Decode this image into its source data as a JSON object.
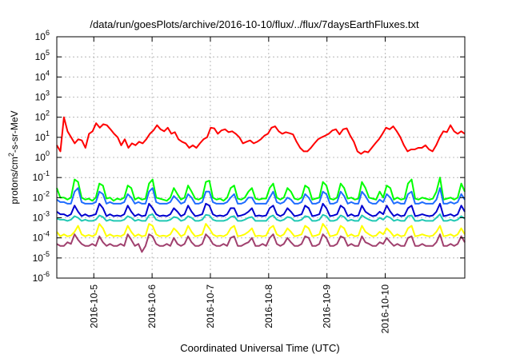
{
  "chart_data": {
    "type": "line",
    "title": "/data/run/goesPlots/archive/2016-10-10/flux/../flux/7daysEarthFluxes.txt",
    "xlabel": "Coordinated Universal Time (UTC)",
    "ylabel_parts": [
      "protons/cm",
      "2",
      "-s-sr-MeV"
    ],
    "y_scale": "log",
    "ylim": [
      1e-06,
      1000000.0
    ],
    "y_ticks": [
      {
        "base": "10",
        "exp": "-6",
        "value": 1e-06
      },
      {
        "base": "10",
        "exp": "-5",
        "value": 1e-05
      },
      {
        "base": "10",
        "exp": "-4",
        "value": 0.0001
      },
      {
        "base": "10",
        "exp": "-3",
        "value": 0.001
      },
      {
        "base": "10",
        "exp": "-2",
        "value": 0.01
      },
      {
        "base": "10",
        "exp": "-1",
        "value": 0.1
      },
      {
        "base": "10",
        "exp": "0",
        "value": 1
      },
      {
        "base": "10",
        "exp": "1",
        "value": 10
      },
      {
        "base": "10",
        "exp": "2",
        "value": 100
      },
      {
        "base": "10",
        "exp": "3",
        "value": 1000
      },
      {
        "base": "10",
        "exp": "4",
        "value": 10000
      },
      {
        "base": "10",
        "exp": "5",
        "value": 100000
      },
      {
        "base": "10",
        "exp": "6",
        "value": 1000000
      }
    ],
    "x_ticks": [
      "2016-10-5",
      "2016-10-6",
      "2016-10-7",
      "2016-10-8",
      "2016-10-9",
      "2016-10-10"
    ],
    "x_range_days": [
      0,
      7
    ],
    "grid": true,
    "series": [
      {
        "color": "#ff0000",
        "values": [
          4,
          2,
          100,
          20,
          10,
          5,
          8,
          7,
          3,
          15,
          20,
          50,
          30,
          45,
          40,
          25,
          15,
          10,
          4,
          8,
          3,
          5,
          4,
          6,
          5,
          8,
          15,
          22,
          40,
          25,
          20,
          30,
          15,
          18,
          8,
          6,
          5,
          3,
          4,
          3,
          5,
          8,
          10,
          30,
          28,
          15,
          22,
          25,
          18,
          20,
          15,
          10,
          5,
          6,
          7,
          5,
          6,
          8,
          12,
          15,
          30,
          35,
          20,
          15,
          18,
          16,
          14,
          6,
          3,
          2,
          2,
          3,
          5,
          8,
          10,
          12,
          15,
          22,
          25,
          14,
          25,
          28,
          12,
          6,
          2,
          1.5,
          2,
          1.8,
          3,
          5,
          8,
          15,
          30,
          25,
          35,
          20,
          10,
          4,
          2,
          2.5,
          2.5,
          3,
          3,
          4,
          2.5,
          2,
          4,
          10,
          20,
          18,
          40,
          20,
          15,
          20,
          15
        ]
      },
      {
        "color": "#00ff00",
        "values": [
          0.03,
          0.01,
          0.01,
          0.008,
          0.01,
          0.08,
          0.06,
          0.01,
          0.008,
          0.009,
          0.007,
          0.01,
          0.05,
          0.04,
          0.009,
          0.01,
          0.007,
          0.009,
          0.008,
          0.01,
          0.04,
          0.03,
          0.008,
          0.01,
          0.008,
          0.009,
          0.05,
          0.08,
          0.01,
          0.009,
          0.008,
          0.007,
          0.01,
          0.03,
          0.015,
          0.008,
          0.01,
          0.04,
          0.02,
          0.009,
          0.008,
          0.01,
          0.06,
          0.07,
          0.01,
          0.008,
          0.009,
          0.007,
          0.01,
          0.03,
          0.04,
          0.009,
          0.008,
          0.01,
          0.02,
          0.03,
          0.009,
          0.008,
          0.009,
          0.009,
          0.03,
          0.05,
          0.01,
          0.008,
          0.01,
          0.03,
          0.02,
          0.009,
          0.008,
          0.01,
          0.04,
          0.03,
          0.008,
          0.009,
          0.01,
          0.06,
          0.04,
          0.009,
          0.008,
          0.01,
          0.05,
          0.03,
          0.009,
          0.01,
          0.008,
          0.009,
          0.06,
          0.03,
          0.01,
          0.009,
          0.008,
          0.02,
          0.01,
          0.04,
          0.03,
          0.008,
          0.01,
          0.008,
          0.009,
          0.05,
          0.08,
          0.009,
          0.008,
          0.01,
          0.009,
          0.008,
          0.009,
          0.02,
          0.1,
          0.008,
          0.009,
          0.01,
          0.008,
          0.01,
          0.05,
          0.02
        ]
      },
      {
        "color": "#1e6cff",
        "values": [
          0.008,
          0.006,
          0.006,
          0.005,
          0.005,
          0.02,
          0.03,
          0.006,
          0.005,
          0.005,
          0.005,
          0.006,
          0.02,
          0.015,
          0.005,
          0.006,
          0.005,
          0.005,
          0.005,
          0.006,
          0.015,
          0.01,
          0.005,
          0.006,
          0.005,
          0.005,
          0.02,
          0.03,
          0.006,
          0.005,
          0.005,
          0.005,
          0.006,
          0.012,
          0.008,
          0.005,
          0.006,
          0.015,
          0.01,
          0.005,
          0.005,
          0.006,
          0.02,
          0.02,
          0.006,
          0.005,
          0.005,
          0.005,
          0.006,
          0.01,
          0.015,
          0.005,
          0.005,
          0.006,
          0.01,
          0.01,
          0.005,
          0.005,
          0.005,
          0.005,
          0.01,
          0.02,
          0.006,
          0.005,
          0.006,
          0.01,
          0.008,
          0.005,
          0.005,
          0.006,
          0.015,
          0.01,
          0.005,
          0.005,
          0.006,
          0.02,
          0.015,
          0.005,
          0.005,
          0.006,
          0.02,
          0.012,
          0.005,
          0.006,
          0.005,
          0.005,
          0.02,
          0.012,
          0.006,
          0.005,
          0.005,
          0.008,
          0.006,
          0.015,
          0.01,
          0.005,
          0.006,
          0.005,
          0.005,
          0.015,
          0.02,
          0.005,
          0.005,
          0.006,
          0.005,
          0.005,
          0.005,
          0.008,
          0.03,
          0.005,
          0.005,
          0.006,
          0.005,
          0.006,
          0.015,
          0.008
        ]
      },
      {
        "color": "#0000d0",
        "values": [
          0.002,
          0.0015,
          0.0015,
          0.0012,
          0.0015,
          0.004,
          0.002,
          0.0012,
          0.0015,
          0.0012,
          0.0013,
          0.0015,
          0.005,
          0.003,
          0.0012,
          0.0015,
          0.0012,
          0.0013,
          0.0012,
          0.0015,
          0.004,
          0.002,
          0.0012,
          0.0015,
          0.0012,
          0.0013,
          0.005,
          0.003,
          0.0015,
          0.0012,
          0.0013,
          0.0012,
          0.0015,
          0.003,
          0.002,
          0.0012,
          0.0015,
          0.004,
          0.002,
          0.0012,
          0.0013,
          0.0015,
          0.005,
          0.004,
          0.0015,
          0.0012,
          0.0013,
          0.0012,
          0.0015,
          0.003,
          0.003,
          0.0012,
          0.0013,
          0.0015,
          0.002,
          0.003,
          0.0012,
          0.0013,
          0.0012,
          0.0013,
          0.003,
          0.004,
          0.0015,
          0.0012,
          0.0015,
          0.003,
          0.002,
          0.0012,
          0.0013,
          0.0015,
          0.004,
          0.003,
          0.0012,
          0.0013,
          0.0015,
          0.005,
          0.003,
          0.0012,
          0.0013,
          0.0015,
          0.004,
          0.003,
          0.0012,
          0.0015,
          0.0012,
          0.0013,
          0.004,
          0.002,
          0.0015,
          0.0012,
          0.0013,
          0.002,
          0.0015,
          0.004,
          0.002,
          0.0012,
          0.0015,
          0.0012,
          0.0013,
          0.003,
          0.004,
          0.0012,
          0.0013,
          0.0015,
          0.0013,
          0.0012,
          0.0013,
          0.002,
          0.005,
          0.0012,
          0.0013,
          0.0015,
          0.0012,
          0.0015,
          0.004,
          0.002
        ]
      },
      {
        "color": "#20c8b4",
        "values": [
          0.0009,
          0.0008,
          0.0008,
          0.0007,
          0.0008,
          0.0012,
          0.001,
          0.0007,
          0.0008,
          0.0007,
          0.0007,
          0.0008,
          0.0013,
          0.0011,
          0.0007,
          0.0008,
          0.0007,
          0.0007,
          0.0007,
          0.0008,
          0.0012,
          0.001,
          0.0007,
          0.0008,
          0.0007,
          0.0007,
          0.0013,
          0.0015,
          0.0008,
          0.0007,
          0.0007,
          0.0007,
          0.0008,
          0.0011,
          0.001,
          0.0007,
          0.0008,
          0.0012,
          0.001,
          0.0007,
          0.0007,
          0.0008,
          0.0014,
          0.0013,
          0.0008,
          0.0007,
          0.0007,
          0.0007,
          0.0008,
          0.0011,
          0.0012,
          0.0007,
          0.0007,
          0.0008,
          0.001,
          0.0011,
          0.0007,
          0.0007,
          0.0007,
          0.0007,
          0.0011,
          0.0013,
          0.0008,
          0.0007,
          0.0008,
          0.0011,
          0.001,
          0.0007,
          0.0007,
          0.0008,
          0.0012,
          0.0011,
          0.0007,
          0.0007,
          0.0008,
          0.0014,
          0.0012,
          0.0007,
          0.0007,
          0.0008,
          0.0013,
          0.0011,
          0.0007,
          0.0008,
          0.0007,
          0.0007,
          0.0013,
          0.001,
          0.0008,
          0.0007,
          0.0007,
          0.001,
          0.0008,
          0.0012,
          0.001,
          0.0007,
          0.0008,
          0.0007,
          0.0007,
          0.0012,
          0.0013,
          0.0007,
          0.0007,
          0.0008,
          0.0007,
          0.0007,
          0.0007,
          0.001,
          0.0015,
          0.0007,
          0.0007,
          0.0008,
          0.0007,
          0.0008,
          0.0012,
          0.0009
        ]
      },
      {
        "color": "#ffff00",
        "values": [
          0.0002,
          0.00012,
          0.00015,
          0.00012,
          0.00013,
          0.0002,
          0.0004,
          0.00015,
          0.00012,
          0.00014,
          0.00012,
          0.00015,
          0.0005,
          0.0003,
          0.00012,
          0.00015,
          0.00012,
          0.00013,
          0.00012,
          0.00015,
          0.0004,
          0.0002,
          0.00012,
          0.00015,
          0.00012,
          0.00013,
          0.0005,
          0.0004,
          0.00015,
          0.00012,
          0.00013,
          0.00012,
          0.00015,
          0.0003,
          0.0002,
          0.00012,
          0.00015,
          0.0004,
          0.0002,
          0.00012,
          0.00013,
          0.00015,
          0.0005,
          0.0003,
          0.00015,
          0.00012,
          0.00013,
          0.00012,
          0.00015,
          0.0003,
          0.0004,
          0.00012,
          0.00013,
          0.00015,
          0.0002,
          0.0003,
          0.00012,
          0.00013,
          0.00012,
          0.00013,
          0.0003,
          0.0004,
          0.00015,
          0.00012,
          0.00015,
          0.0003,
          0.0002,
          0.00012,
          0.00013,
          0.00015,
          0.0004,
          0.0003,
          0.00012,
          0.00013,
          0.00015,
          0.0005,
          0.0003,
          0.00012,
          0.00013,
          0.00015,
          0.0004,
          0.0003,
          0.00012,
          0.00015,
          0.00012,
          0.00013,
          0.0004,
          0.0002,
          0.00015,
          0.00012,
          0.00013,
          0.0002,
          0.00015,
          0.0003,
          0.0002,
          0.00012,
          0.00015,
          0.00012,
          0.00013,
          0.0003,
          0.0004,
          0.00012,
          0.00013,
          0.00015,
          0.00013,
          0.00012,
          0.00013,
          0.0002,
          0.0004,
          0.00012,
          0.00013,
          0.00015,
          0.00012,
          0.00015,
          0.0003,
          0.00015
        ]
      },
      {
        "color": "#a0406e",
        "values": [
          5e-05,
          4e-05,
          4e-05,
          6e-05,
          5e-05,
          0.00015,
          8e-05,
          5e-05,
          4e-05,
          4e-05,
          5e-05,
          4e-05,
          0.00012,
          6e-05,
          4e-05,
          5e-05,
          4e-05,
          4e-05,
          5e-05,
          4e-05,
          0.00015,
          8e-05,
          4e-05,
          5e-05,
          2e-05,
          4e-05,
          0.00015,
          0.00012,
          5e-05,
          4e-05,
          4e-05,
          5e-05,
          4e-05,
          0.0001,
          5e-05,
          4e-05,
          5e-05,
          0.00012,
          6e-05,
          4e-05,
          4e-05,
          5e-05,
          0.00015,
          0.0001,
          5e-05,
          4e-05,
          4e-05,
          5e-05,
          4e-05,
          0.0001,
          0.00012,
          4e-05,
          4e-05,
          5e-05,
          6e-05,
          0.0001,
          4e-05,
          4e-05,
          5e-05,
          4e-05,
          0.0001,
          0.00015,
          5e-05,
          4e-05,
          5e-05,
          0.0001,
          6e-05,
          4e-05,
          4e-05,
          5e-05,
          0.00012,
          0.0001,
          4e-05,
          4e-05,
          5e-05,
          0.00015,
          0.0001,
          4e-05,
          4e-05,
          5e-05,
          0.00012,
          0.0001,
          4e-05,
          5e-05,
          4e-05,
          4e-05,
          0.00012,
          6e-05,
          5e-05,
          4e-05,
          4e-05,
          6e-05,
          5e-05,
          0.0001,
          6e-05,
          4e-05,
          5e-05,
          4e-05,
          4e-05,
          0.0001,
          0.00012,
          4e-05,
          4e-05,
          5e-05,
          4e-05,
          4e-05,
          4e-05,
          6e-05,
          0.00015,
          4e-05,
          4e-05,
          5e-05,
          4e-05,
          5e-05,
          0.00012,
          6e-05
        ]
      }
    ]
  }
}
